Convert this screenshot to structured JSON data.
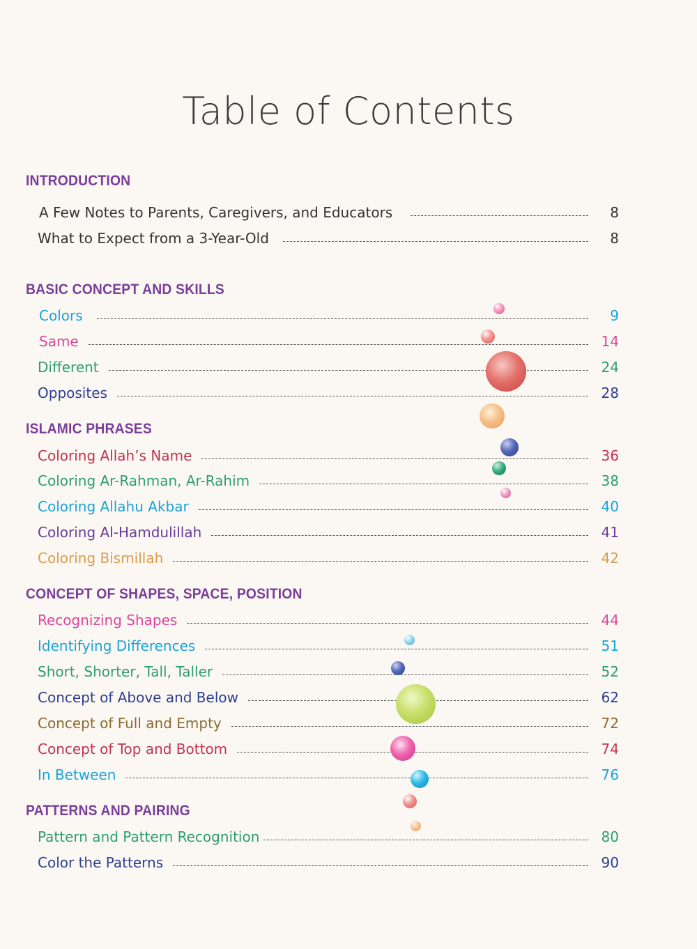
{
  "title": "Table of Contents",
  "sections": [
    {
      "heading": "INTRODUCTION",
      "entries": [
        {
          "label": "A Few Notes to Parents, Caregivers, and Educators",
          "page": "8"
        },
        {
          "label": "What to Expect from a 3-Year-Old",
          "page": "8"
        }
      ]
    },
    {
      "heading": "BASIC CONCEPT AND SKILLS",
      "entries": [
        {
          "label": "Colors",
          "page": "9"
        },
        {
          "label": "Same",
          "page": "14"
        },
        {
          "label": "Different",
          "page": "24"
        },
        {
          "label": "Opposites",
          "page": "28"
        }
      ]
    },
    {
      "heading": "ISLAMIC PHRASES",
      "entries": [
        {
          "label": "Coloring Allah’s Name",
          "page": "36"
        },
        {
          "label": "Coloring Ar-Rahman, Ar-Rahim",
          "page": "38"
        },
        {
          "label": "Coloring Allahu Akbar",
          "page": "40"
        },
        {
          "label": "Coloring Al-Hamdulillah",
          "page": "41"
        },
        {
          "label": "Coloring Bismillah",
          "page": "42"
        }
      ]
    },
    {
      "heading": "CONCEPT OF SHAPES, SPACE, POSITION",
      "entries": [
        {
          "label": "Recognizing Shapes",
          "page": "44"
        },
        {
          "label": "Identifying Differences",
          "page": "51"
        },
        {
          "label": "Short, Shorter, Tall, Taller",
          "page": "52"
        },
        {
          "label": "Concept of Above and Below",
          "page": "62"
        },
        {
          "label": "Concept of Full and Empty",
          "page": "72"
        },
        {
          "label": "Concept of Top and Bottom",
          "page": "74"
        },
        {
          "label": "In Between",
          "page": "76"
        }
      ]
    },
    {
      "heading": "PATTERNS AND PAIRING",
      "entries": [
        {
          "label": "Pattern and Pattern Recognition",
          "page": "80"
        },
        {
          "label": "Color the Patterns",
          "page": "90"
        }
      ]
    }
  ],
  "colors": {
    "heading": "#7a3d9a",
    "intro_text": "#333333",
    "cyan": "#1aa3d6",
    "pink": "#d9469a",
    "green": "#2e9e6a",
    "navy": "#2d3f8f",
    "crimson": "#c0344f",
    "purple": "#6a3b96",
    "orange": "#d99b4e",
    "olive": "#8a6a30"
  }
}
